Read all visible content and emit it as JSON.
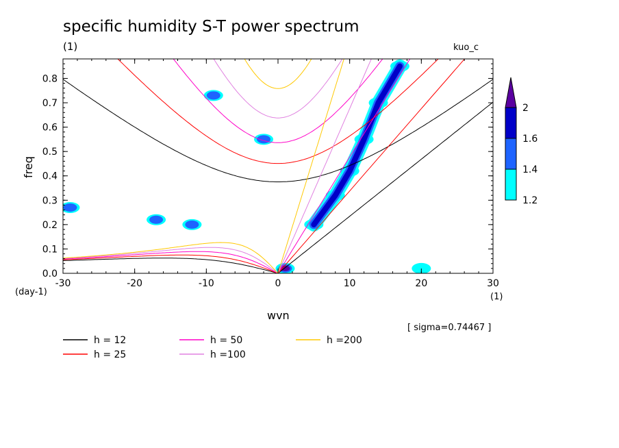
{
  "title": "specific humidity S-T power spectrum",
  "units_label": "(1)",
  "model_label": "kuo_c",
  "chart_data": {
    "type": "heatmap",
    "xlabel": "wvn",
    "ylabel": "freq",
    "x_units": "(1)",
    "y_units": "(day-1)",
    "xlim": [
      -30,
      30
    ],
    "ylim": [
      0.0,
      0.88
    ],
    "x_ticks": [
      -30,
      -20,
      -10,
      0,
      10,
      20,
      30
    ],
    "x_tick_labels": [
      "-30",
      "-20",
      "-10",
      "0",
      "10",
      "20",
      "30"
    ],
    "y_ticks": [
      0.0,
      0.1,
      0.2,
      0.3,
      0.4,
      0.5,
      0.6,
      0.7,
      0.8
    ],
    "y_tick_labels": [
      "0.0",
      "0.1",
      "0.2",
      "0.3",
      "0.4",
      "0.5",
      "0.6",
      "0.7",
      "0.8"
    ],
    "sigma_label": "[ sigma=0.74467 ]",
    "colorbar": {
      "levels": [
        1.2,
        1.4,
        1.6,
        2
      ],
      "level_labels": [
        "1.2",
        "1.4",
        "1.6",
        "2"
      ],
      "colors": [
        "#00ffff",
        "#1e64ff",
        "#0000c8",
        "#5a00a0"
      ]
    },
    "dispersion_curves": [
      {
        "name": "h = 12",
        "h": 12,
        "color": "#000000"
      },
      {
        "name": "h = 25",
        "h": 25,
        "color": "#ff0000"
      },
      {
        "name": "h = 50",
        "h": 50,
        "color": "#ff00c8"
      },
      {
        "name": "h =100",
        "h": 100,
        "color": "#e080e0"
      },
      {
        "name": "h =200",
        "h": 200,
        "color": "#ffc800"
      }
    ],
    "significant_regions": [
      {
        "wvn": 10,
        "freq": 0.42,
        "level": 2.0
      },
      {
        "wvn": 12,
        "freq": 0.55,
        "level": 2.0
      },
      {
        "wvn": 14,
        "freq": 0.7,
        "level": 2.0
      },
      {
        "wvn": 17,
        "freq": 0.85,
        "level": 2.0
      },
      {
        "wvn": 8,
        "freq": 0.32,
        "level": 1.6
      },
      {
        "wvn": 5,
        "freq": 0.2,
        "level": 1.6
      },
      {
        "wvn": 1,
        "freq": 0.02,
        "level": 2.0
      },
      {
        "wvn": -17,
        "freq": 0.22,
        "level": 1.4
      },
      {
        "wvn": -12,
        "freq": 0.2,
        "level": 1.4
      },
      {
        "wvn": -29,
        "freq": 0.27,
        "level": 1.4
      },
      {
        "wvn": -9,
        "freq": 0.73,
        "level": 1.4
      },
      {
        "wvn": -2,
        "freq": 0.55,
        "level": 1.4
      },
      {
        "wvn": 20,
        "freq": 0.02,
        "level": 1.2
      }
    ]
  }
}
